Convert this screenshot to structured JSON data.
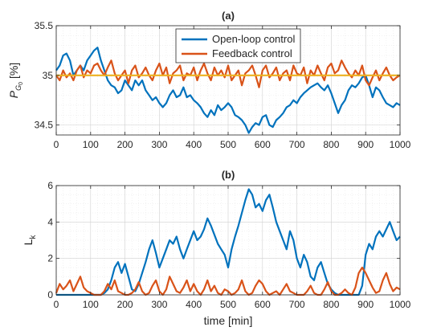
{
  "chart_data": [
    {
      "type": "line",
      "title": "(a)",
      "ylabel_main": "P",
      "ylabel_sub": "G",
      "ylabel_subsub": "0",
      "ylabel_unit": "[%]",
      "xlim": [
        0,
        1000
      ],
      "ylim": [
        34.4,
        35.5
      ],
      "xticks": [
        "0",
        "100",
        "200",
        "300",
        "400",
        "500",
        "600",
        "700",
        "800",
        "900",
        "1000"
      ],
      "yticks": [
        "34.5",
        "35",
        "35.5"
      ],
      "grid": "on (major and minor, dotted)",
      "legend_position": "top-center",
      "colors": {
        "open_loop": "#0072BD",
        "feedback": "#D95319",
        "reference": "#EDB120"
      },
      "reference_value": 35,
      "series": [
        {
          "name": "Open-loop control",
          "x": [
            0,
            10,
            20,
            30,
            40,
            50,
            60,
            70,
            80,
            90,
            100,
            110,
            120,
            130,
            140,
            150,
            160,
            170,
            180,
            190,
            200,
            210,
            220,
            230,
            240,
            250,
            260,
            270,
            280,
            290,
            300,
            310,
            320,
            330,
            340,
            350,
            360,
            370,
            380,
            390,
            400,
            410,
            420,
            430,
            440,
            450,
            460,
            470,
            480,
            490,
            500,
            510,
            520,
            530,
            540,
            550,
            560,
            570,
            580,
            590,
            600,
            610,
            620,
            630,
            640,
            650,
            660,
            670,
            680,
            690,
            700,
            710,
            720,
            730,
            740,
            750,
            760,
            770,
            780,
            790,
            800,
            810,
            820,
            830,
            840,
            850,
            860,
            870,
            880,
            890,
            900,
            910,
            920,
            930,
            940,
            950,
            960,
            970,
            980,
            990,
            1000
          ],
          "values": [
            35.05,
            35.1,
            35.2,
            35.22,
            35.15,
            35.0,
            35.05,
            35.1,
            35.05,
            35.15,
            35.2,
            35.25,
            35.28,
            35.15,
            35.05,
            34.95,
            34.9,
            34.88,
            34.82,
            34.85,
            34.95,
            34.9,
            34.85,
            34.95,
            34.9,
            34.95,
            34.85,
            34.8,
            34.75,
            34.78,
            34.72,
            34.68,
            34.72,
            34.8,
            34.85,
            34.78,
            34.8,
            34.88,
            34.78,
            34.8,
            34.75,
            34.72,
            34.68,
            34.62,
            34.58,
            34.65,
            34.6,
            34.7,
            34.65,
            34.68,
            34.72,
            34.68,
            34.6,
            34.58,
            34.55,
            34.5,
            34.42,
            34.48,
            34.52,
            34.5,
            34.58,
            34.6,
            34.5,
            34.48,
            34.55,
            34.58,
            34.62,
            34.68,
            34.7,
            34.75,
            34.72,
            34.78,
            34.82,
            34.85,
            34.88,
            34.9,
            34.92,
            34.88,
            34.85,
            34.9,
            34.82,
            34.72,
            34.62,
            34.7,
            34.75,
            34.85,
            34.9,
            34.88,
            34.92,
            34.98,
            35.0,
            34.9,
            34.78,
            34.88,
            34.85,
            34.78,
            34.72,
            34.7,
            34.68,
            34.72,
            34.7
          ]
        },
        {
          "name": "Feedback control",
          "x": [
            0,
            10,
            20,
            30,
            40,
            50,
            60,
            70,
            80,
            90,
            100,
            110,
            120,
            130,
            140,
            150,
            160,
            170,
            180,
            190,
            200,
            210,
            220,
            230,
            240,
            250,
            260,
            270,
            280,
            290,
            300,
            310,
            320,
            330,
            340,
            350,
            360,
            370,
            380,
            390,
            400,
            410,
            420,
            430,
            440,
            450,
            460,
            470,
            480,
            490,
            500,
            510,
            520,
            530,
            540,
            550,
            560,
            570,
            580,
            590,
            600,
            610,
            620,
            630,
            640,
            650,
            660,
            670,
            680,
            690,
            700,
            710,
            720,
            730,
            740,
            750,
            760,
            770,
            780,
            790,
            800,
            810,
            820,
            830,
            840,
            850,
            860,
            870,
            880,
            890,
            900,
            910,
            920,
            930,
            940,
            950,
            960,
            970,
            980,
            990,
            1000
          ],
          "values": [
            35.0,
            34.95,
            35.05,
            34.98,
            35.02,
            34.95,
            35.05,
            35.1,
            34.98,
            35.05,
            35.02,
            35.1,
            35.12,
            35.05,
            35.0,
            35.08,
            35.15,
            35.02,
            34.95,
            35.0,
            35.05,
            34.92,
            35.05,
            35.1,
            34.98,
            35.02,
            35.08,
            35.0,
            34.95,
            35.05,
            35.12,
            35.0,
            35.08,
            34.92,
            35.02,
            35.05,
            35.1,
            34.95,
            35.02,
            35.0,
            35.08,
            34.95,
            35.05,
            35.12,
            35.02,
            34.95,
            35.08,
            35.0,
            35.05,
            34.98,
            35.1,
            34.95,
            35.0,
            35.05,
            34.9,
            35.02,
            35.05,
            35.1,
            35.0,
            34.88,
            35.05,
            35.1,
            34.98,
            35.02,
            35.08,
            34.95,
            35.02,
            35.05,
            34.95,
            35.1,
            35.02,
            35.0,
            35.08,
            34.92,
            35.05,
            35.0,
            35.1,
            35.02,
            34.95,
            35.08,
            35.12,
            35.02,
            35.05,
            35.15,
            35.08,
            35.02,
            34.98,
            35.05,
            35.0,
            35.1,
            34.95,
            34.9,
            34.98,
            35.05,
            34.95,
            35.02,
            35.08,
            35.0,
            34.95,
            34.98,
            35.0
          ]
        }
      ]
    },
    {
      "type": "line",
      "title": "(b)",
      "ylabel_main": "L",
      "ylabel_sub": "k",
      "xlabel": "time [min]",
      "xlim": [
        0,
        1000
      ],
      "ylim": [
        0,
        6
      ],
      "xticks": [
        "0",
        "100",
        "200",
        "300",
        "400",
        "500",
        "600",
        "700",
        "800",
        "900",
        "1000"
      ],
      "yticks": [
        "0",
        "2",
        "4",
        "6"
      ],
      "grid": "on (major and minor, dotted)",
      "colors": {
        "open_loop": "#0072BD",
        "feedback": "#D95319"
      },
      "series": [
        {
          "x": [
            0,
            10,
            20,
            30,
            40,
            50,
            60,
            70,
            80,
            90,
            100,
            110,
            120,
            130,
            140,
            150,
            160,
            170,
            180,
            190,
            200,
            210,
            220,
            230,
            240,
            250,
            260,
            270,
            280,
            290,
            300,
            310,
            320,
            330,
            340,
            350,
            360,
            370,
            380,
            390,
            400,
            410,
            420,
            430,
            440,
            450,
            460,
            470,
            480,
            490,
            500,
            510,
            520,
            530,
            540,
            550,
            560,
            570,
            580,
            590,
            600,
            610,
            620,
            630,
            640,
            650,
            660,
            670,
            680,
            690,
            700,
            710,
            720,
            730,
            740,
            750,
            760,
            770,
            780,
            790,
            800,
            810,
            820,
            830,
            840,
            850,
            860,
            870,
            880,
            890,
            900,
            910,
            920,
            930,
            940,
            950,
            960,
            970,
            980,
            990,
            1000
          ],
          "values": [
            0,
            0,
            0,
            0,
            0,
            0,
            0,
            0,
            0,
            0,
            0,
            0,
            0,
            0,
            0.1,
            0.3,
            0.8,
            1.5,
            1.8,
            1.2,
            1.7,
            1.0,
            0.3,
            0.2,
            0.6,
            1.2,
            1.8,
            2.5,
            3.0,
            2.3,
            1.5,
            2.0,
            2.5,
            3.0,
            2.8,
            3.2,
            2.5,
            2.0,
            2.5,
            3.0,
            3.5,
            3.0,
            3.2,
            3.6,
            4.2,
            3.8,
            3.3,
            2.8,
            2.5,
            2.2,
            1.5,
            2.5,
            3.2,
            3.8,
            4.5,
            5.2,
            5.8,
            5.5,
            4.8,
            5.0,
            4.6,
            5.2,
            5.5,
            4.8,
            4.0,
            3.5,
            3.0,
            2.5,
            3.5,
            3.0,
            2.0,
            1.5,
            2.2,
            1.8,
            1.0,
            0.8,
            1.5,
            1.8,
            1.2,
            0.6,
            0.3,
            0.1,
            0,
            0,
            0,
            0,
            0,
            0,
            0,
            0.5,
            2.2,
            2.8,
            2.5,
            3.2,
            3.5,
            3.2,
            3.6,
            4.0,
            3.5,
            3.0,
            3.2
          ]
        },
        {
          "x": [
            0,
            10,
            20,
            30,
            40,
            50,
            60,
            70,
            80,
            90,
            100,
            110,
            120,
            130,
            140,
            150,
            160,
            170,
            180,
            190,
            200,
            210,
            220,
            230,
            240,
            250,
            260,
            270,
            280,
            290,
            300,
            310,
            320,
            330,
            340,
            350,
            360,
            370,
            380,
            390,
            400,
            410,
            420,
            430,
            440,
            450,
            460,
            470,
            480,
            490,
            500,
            510,
            520,
            530,
            540,
            550,
            560,
            570,
            580,
            590,
            600,
            610,
            620,
            630,
            640,
            650,
            660,
            670,
            680,
            690,
            700,
            710,
            720,
            730,
            740,
            750,
            760,
            770,
            780,
            790,
            800,
            810,
            820,
            830,
            840,
            850,
            860,
            870,
            880,
            890,
            900,
            910,
            920,
            930,
            940,
            950,
            960,
            970,
            980,
            990,
            1000
          ],
          "values": [
            0.1,
            0.6,
            0.3,
            0.5,
            0.8,
            0.2,
            0.6,
            1.0,
            0.4,
            0.2,
            0.1,
            0,
            0,
            0,
            0.2,
            0.6,
            0.3,
            0.8,
            0.2,
            0.1,
            0,
            0,
            0.1,
            0.3,
            0.7,
            0.2,
            0,
            0.1,
            0.5,
            0.8,
            0.2,
            0,
            0.3,
            1.0,
            0.6,
            0.2,
            0.1,
            0.4,
            0.8,
            0.2,
            0.6,
            0.2,
            0,
            0.3,
            0.8,
            0.2,
            0.5,
            0.1,
            0,
            0.3,
            0.2,
            0,
            0.1,
            0.3,
            0.8,
            0.2,
            0,
            0.1,
            0.5,
            0.8,
            0.6,
            0.2,
            0,
            0.1,
            0.2,
            0,
            0.3,
            0.6,
            0.2,
            0.1,
            0,
            0,
            0,
            0.2,
            0.5,
            0.1,
            0,
            0,
            0.3,
            0.7,
            0.2,
            0,
            0,
            0.1,
            0.3,
            0.1,
            0,
            0.4,
            1.2,
            1.5,
            1.2,
            0.8,
            0.4,
            0.1,
            0.2,
            0.8,
            1.2,
            0.6,
            0.2,
            0.4,
            0.3
          ]
        }
      ]
    }
  ],
  "legend": {
    "entries": [
      "Open-loop control",
      "Feedback control"
    ]
  }
}
